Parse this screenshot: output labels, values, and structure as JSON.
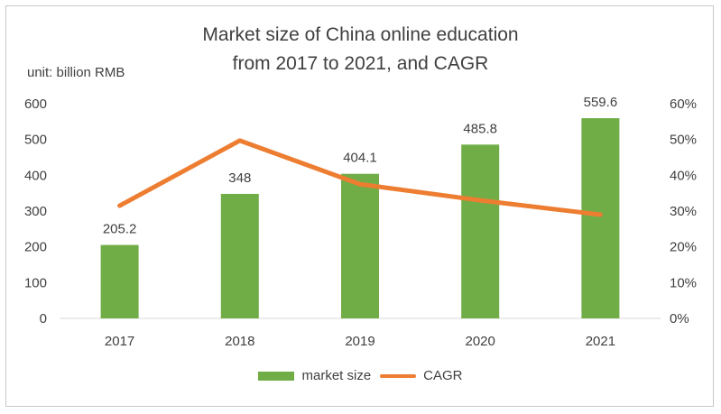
{
  "chart_data": {
    "type": "bar",
    "title_line1": "Market size of China online education",
    "title_line2": "from 2017 to 2021, and CAGR",
    "unit_label": "unit: billion RMB",
    "categories": [
      "2017",
      "2018",
      "2019",
      "2020",
      "2021"
    ],
    "series": [
      {
        "name": "market size",
        "type": "bar",
        "axis": "left",
        "values": [
          205.2,
          348,
          404.1,
          485.8,
          559.6
        ],
        "labels": [
          "205.2",
          "348",
          "404.1",
          "485.8",
          "559.6"
        ]
      },
      {
        "name": "CAGR",
        "type": "line",
        "axis": "right",
        "values": [
          31.5,
          49.7,
          37.5,
          33.0,
          29.0
        ]
      }
    ],
    "left_axis": {
      "ylim": [
        0,
        600
      ],
      "ticks": [
        "0",
        "100",
        "200",
        "300",
        "400",
        "500",
        "600"
      ]
    },
    "right_axis": {
      "ylim": [
        0,
        60
      ],
      "ticks": [
        "0%",
        "10%",
        "20%",
        "30%",
        "40%",
        "50%",
        "60%"
      ]
    },
    "grid": false,
    "legend_position": "bottom",
    "colors": {
      "bar": "#70ad47",
      "line": "#ed7d31",
      "text": "#404040"
    }
  }
}
